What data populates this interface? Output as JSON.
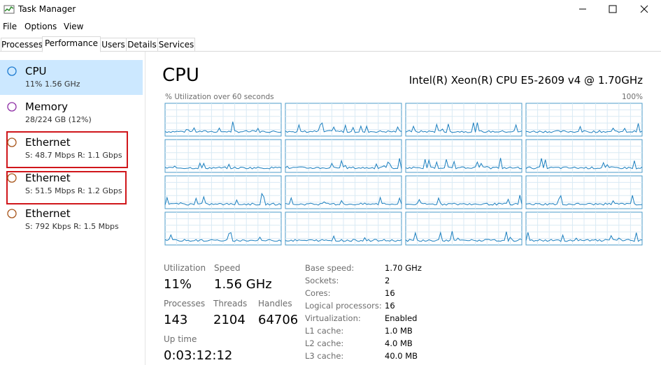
{
  "window": {
    "title": "Task Manager"
  },
  "menu": [
    "File",
    "Options",
    "View"
  ],
  "tabs": [
    "Processes",
    "Performance",
    "Users",
    "Details",
    "Services"
  ],
  "active_tab": "Performance",
  "sidebar": [
    {
      "name": "CPU",
      "detail": "11% 1.56 GHz"
    },
    {
      "name": "Memory",
      "detail": "28/224 GB (12%)"
    },
    {
      "name": "Ethernet",
      "detail": "S: 48.7 Mbps  R: 1.1 Gbps"
    },
    {
      "name": "Ethernet",
      "detail": "S: 51.5 Mbps  R: 1.2 Gbps"
    },
    {
      "name": "Ethernet",
      "detail": "S: 792 Kbps  R: 1.5 Mbps"
    }
  ],
  "main": {
    "title": "CPU",
    "cpu_name": "Intel(R) Xeon(R) CPU E5-2609 v4 @ 1.70GHz",
    "graph_label": "% Utilization over 60 seconds",
    "graph_max": "100%",
    "stats": [
      {
        "label": "Utilization",
        "value": "11%"
      },
      {
        "label": "Speed",
        "value": "1.56 GHz"
      },
      {
        "label": "Processes",
        "value": "143"
      },
      {
        "label": "Threads",
        "value": "2104"
      },
      {
        "label": "Handles",
        "value": "64706"
      },
      {
        "label": "Up time",
        "value": "0:03:12:12"
      }
    ],
    "specs": [
      {
        "label": "Base speed:",
        "value": "1.70 GHz"
      },
      {
        "label": "Sockets:",
        "value": "2"
      },
      {
        "label": "Cores:",
        "value": "16"
      },
      {
        "label": "Logical processors:",
        "value": "16"
      },
      {
        "label": "Virtualization:",
        "value": "Enabled"
      },
      {
        "label": "L1 cache:",
        "value": "1.0 MB"
      },
      {
        "label": "L2 cache:",
        "value": "4.0 MB"
      },
      {
        "label": "L3 cache:",
        "value": "40.0 MB"
      }
    ]
  }
}
